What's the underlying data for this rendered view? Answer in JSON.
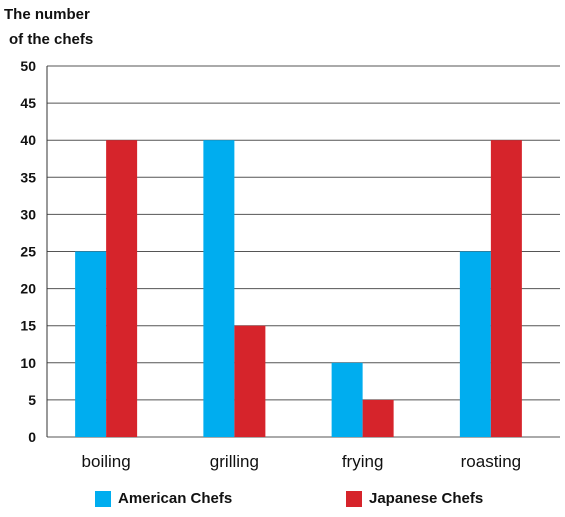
{
  "chart_data": {
    "type": "bar",
    "ylabel_lines": [
      "The number",
      "of the chefs"
    ],
    "xlabel": "",
    "categories": [
      "boiling",
      "grilling",
      "frying",
      "roasting"
    ],
    "series": [
      {
        "name": "American Chefs",
        "color": "#00adef",
        "values": [
          25,
          40,
          10,
          25
        ]
      },
      {
        "name": "Japanese Chefs",
        "color": "#d6242b",
        "values": [
          40,
          15,
          5,
          40
        ]
      }
    ],
    "ylim": [
      0,
      50
    ],
    "yticks": [
      0,
      5,
      10,
      15,
      20,
      25,
      30,
      35,
      40,
      45,
      50
    ],
    "grid": true,
    "legend_position": "bottom"
  }
}
